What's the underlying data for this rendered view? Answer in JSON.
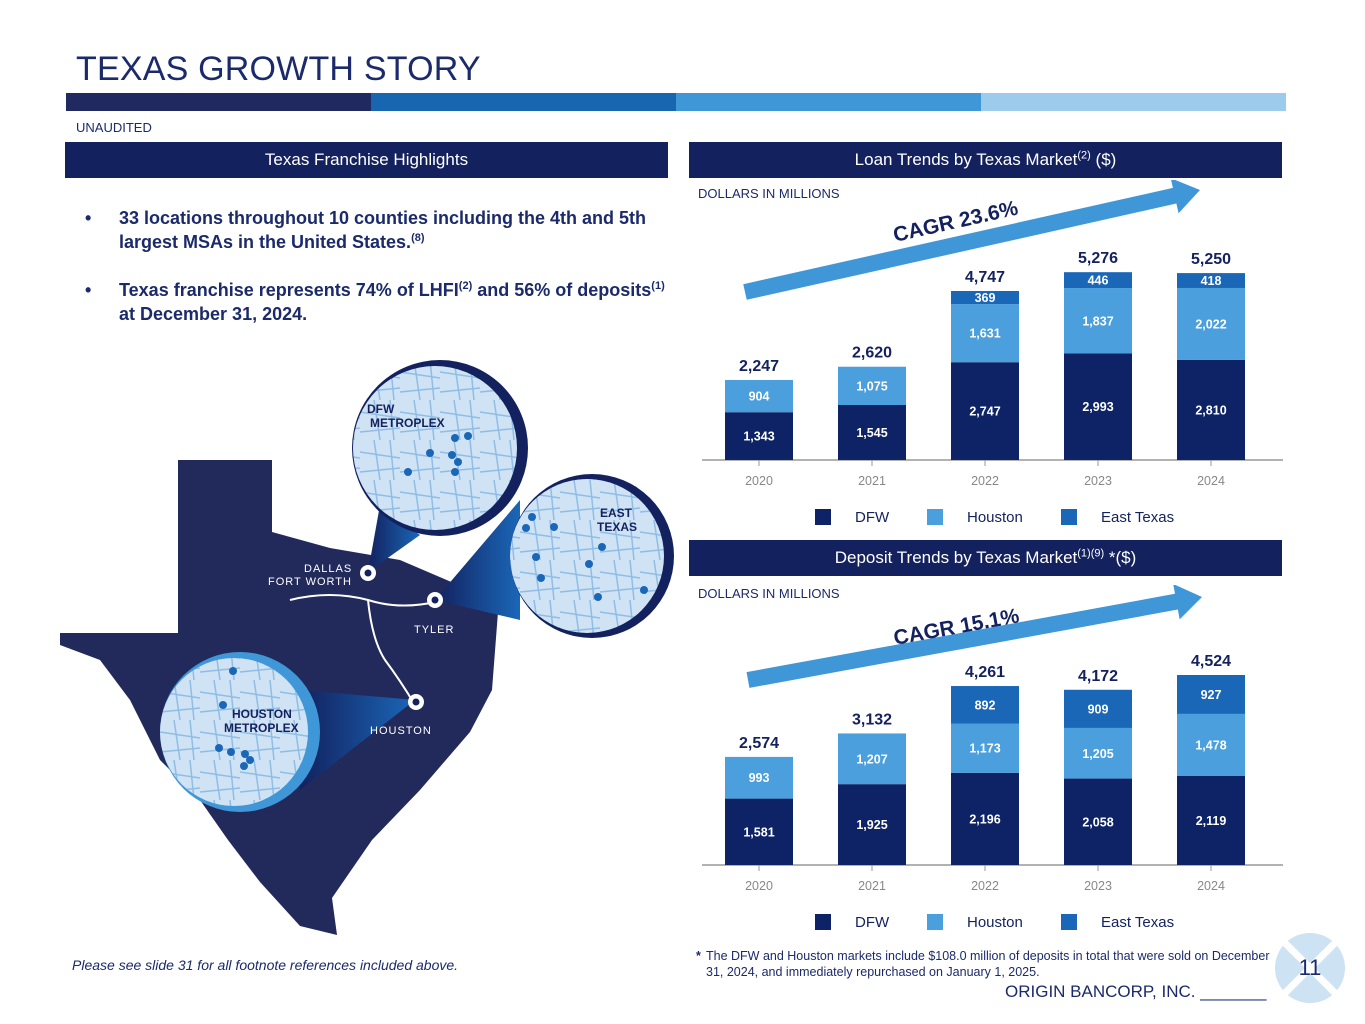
{
  "title": "TEXAS GROWTH STORY",
  "subtitle": "UNAUDITED",
  "colors": {
    "navy": "#13215e",
    "dfw": "#0d2366",
    "houston": "#4a9fdc",
    "east_texas": "#1a67b8",
    "stripe": [
      "#202a60",
      "#1866b0",
      "#3f97d8",
      "#9dcbec"
    ]
  },
  "left_panel": {
    "header": "Texas Franchise Highlights",
    "bullets": [
      {
        "text": "33 locations throughout 10 counties including the 4th and 5th largest MSAs in the United States.",
        "sup": "(8)"
      },
      {
        "text_a": "Texas franchise represents 74% of LHFI",
        "sup_a": "(2)",
        "text_b": " and 56% of deposits",
        "sup_b": "(1)",
        "text_c": " at December 31, 2024."
      }
    ],
    "map_labels": {
      "dfw_circle": "DFW\nMETROPLEX",
      "east_circle": "EAST\nTEXAS",
      "houston_circle": "HOUSTON\nMETROPLEX",
      "dallas": "DALLAS\nFORT WORTH",
      "tyler": "TYLER",
      "houston": "HOUSTON"
    },
    "bullet_symbol": "•"
  },
  "chart_data": [
    {
      "type": "bar",
      "stacked": true,
      "header": "Loan Trends by Texas Market",
      "header_sup": "(2)",
      "header_suffix": " ($)",
      "unit_label": "DOLLARS IN MILLIONS",
      "cagr": "CAGR 23.6%",
      "categories": [
        "2020",
        "2021",
        "2022",
        "2023",
        "2024"
      ],
      "series": [
        {
          "name": "DFW",
          "values": [
            1343,
            1545,
            2747,
            2993,
            2810
          ],
          "labels": [
            "1,343",
            "1,545",
            "2,747",
            "2,993",
            "2,810"
          ]
        },
        {
          "name": "Houston",
          "values": [
            904,
            1075,
            1631,
            1837,
            2022
          ],
          "labels": [
            "904",
            "1,075",
            "1,631",
            "1,837",
            "2,022"
          ]
        },
        {
          "name": "East Texas",
          "values": [
            0,
            0,
            369,
            446,
            418
          ],
          "labels": [
            "",
            "",
            "369",
            "446",
            "418"
          ]
        }
      ],
      "totals": [
        "2,247",
        "2,620",
        "4,747",
        "5,276",
        "5,250"
      ],
      "legend": "bottom"
    },
    {
      "type": "bar",
      "stacked": true,
      "header": "Deposit Trends by Texas Market",
      "header_sup": "(1)(9)",
      "header_suffix": " *($)",
      "unit_label": "DOLLARS IN MILLIONS",
      "cagr": "CAGR 15.1%",
      "categories": [
        "2020",
        "2021",
        "2022",
        "2023",
        "2024"
      ],
      "series": [
        {
          "name": "DFW",
          "values": [
            1581,
            1925,
            2196,
            2058,
            2119
          ],
          "labels": [
            "1,581",
            "1,925",
            "2,196",
            "2,058",
            "2,119"
          ]
        },
        {
          "name": "Houston",
          "values": [
            993,
            1207,
            1173,
            1205,
            1478
          ],
          "labels": [
            "993",
            "1,207",
            "1,173",
            "1,205",
            "1,478"
          ]
        },
        {
          "name": "East Texas",
          "values": [
            0,
            0,
            892,
            909,
            927
          ],
          "labels": [
            "",
            "",
            "892",
            "909",
            "927"
          ]
        }
      ],
      "totals": [
        "2,574",
        "3,132",
        "4,261",
        "4,172",
        "4,524"
      ],
      "legend": "bottom"
    }
  ],
  "footnotes": {
    "left": "Please see slide 31 for all footnote references included above.",
    "star": "*",
    "right": "The DFW and Houston markets include $108.0 million of deposits in total that were sold on December 31, 2024, and immediately repurchased on January 1, 2025."
  },
  "footer": {
    "company": "ORIGIN BANCORP, INC. _______",
    "page": "11"
  }
}
